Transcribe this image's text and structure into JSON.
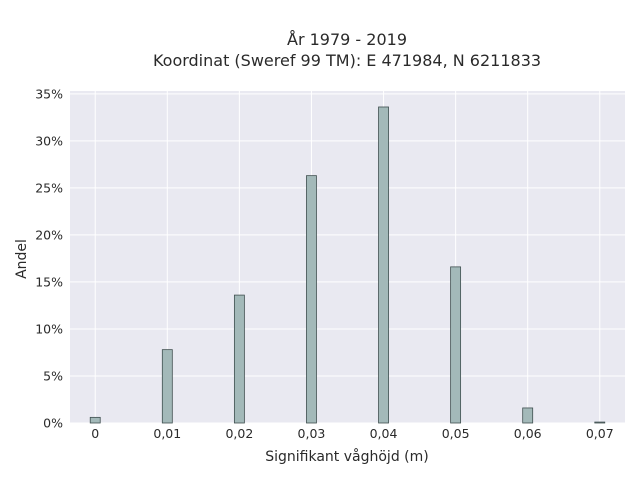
{
  "chart_data": {
    "type": "bar",
    "title": "År 1979 - 2019",
    "subtitle": "Koordinat (Sweref 99 TM): E 471984, N 6211833",
    "xlabel": "Signifikant våghöjd (m)",
    "ylabel": "Andel",
    "x_values": [
      0,
      0.01,
      0.02,
      0.03,
      0.04,
      0.05,
      0.06,
      0.07
    ],
    "x_tick_labels": [
      "0",
      "0,01",
      "0,02",
      "0,03",
      "0,04",
      "0,05",
      "0,06",
      "0,07"
    ],
    "y_values_percent": [
      0.6,
      7.8,
      13.6,
      26.3,
      33.6,
      16.6,
      1.6,
      0.1
    ],
    "y_tick_values": [
      0,
      5,
      10,
      15,
      20,
      25,
      30,
      35
    ],
    "y_tick_labels": [
      "0%",
      "5%",
      "10%",
      "15%",
      "20%",
      "25%",
      "30%",
      "35%"
    ],
    "xlim": [
      -0.0035,
      0.0735
    ],
    "ylim": [
      0,
      35.3
    ],
    "grid": true,
    "colors": {
      "bar_fill": "#a3b9b9",
      "bar_stroke": "#3f4f4f",
      "plot_bg": "#e9e9f1",
      "grid": "#ffffff"
    }
  }
}
